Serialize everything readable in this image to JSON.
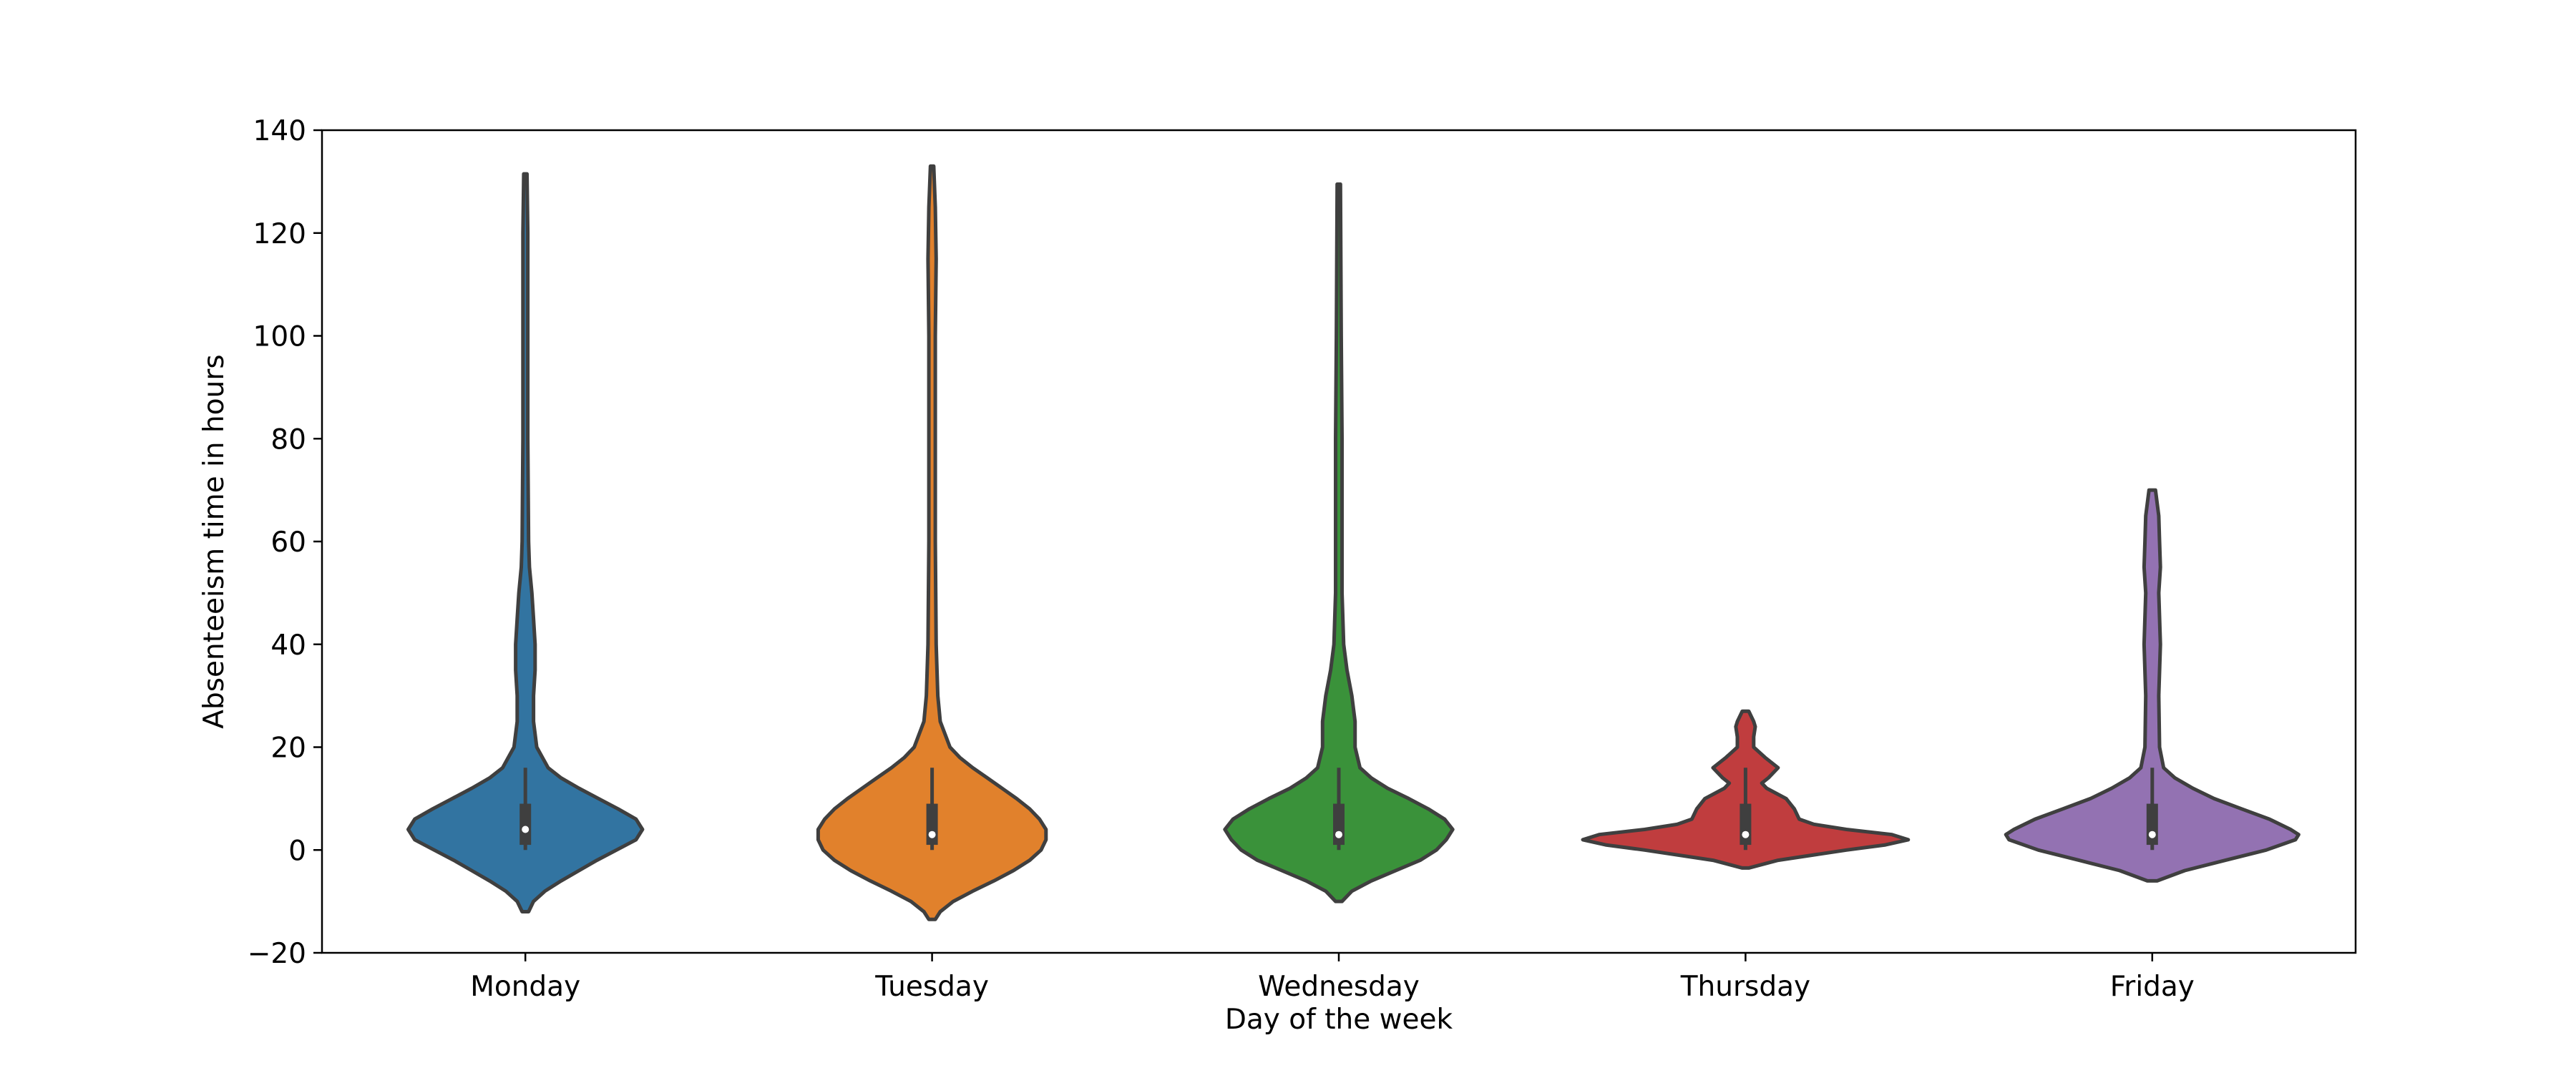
{
  "chart_data": {
    "type": "violin",
    "title": "",
    "xlabel": "Day of the week",
    "ylabel": "Absenteeism time in hours",
    "ylim": [
      -20,
      140
    ],
    "yticks": [
      -20,
      0,
      20,
      40,
      60,
      80,
      100,
      120,
      140
    ],
    "ytick_labels": [
      "−20",
      "0",
      "20",
      "40",
      "60",
      "80",
      "100",
      "120",
      "140"
    ],
    "grid": false,
    "legend": "none",
    "categories": [
      "Monday",
      "Tuesday",
      "Wednesday",
      "Thursday",
      "Friday"
    ],
    "colors": [
      "#3274a1",
      "#e1812c",
      "#3a923a",
      "#c03d3e",
      "#9372b2"
    ],
    "series": [
      {
        "min": -12,
        "max": 131.5,
        "q1": 1,
        "median": 4,
        "q3": 9,
        "whisker_low": 0,
        "whisker_high": 16,
        "density": [
          [
            -12,
            0.02
          ],
          [
            -10,
            0.05
          ],
          [
            -8,
            0.12
          ],
          [
            -6,
            0.22
          ],
          [
            -4,
            0.33
          ],
          [
            -2,
            0.44
          ],
          [
            0,
            0.56
          ],
          [
            2,
            0.68
          ],
          [
            4,
            0.72
          ],
          [
            6,
            0.68
          ],
          [
            8,
            0.57
          ],
          [
            10,
            0.45
          ],
          [
            12,
            0.33
          ],
          [
            14,
            0.22
          ],
          [
            16,
            0.14
          ],
          [
            20,
            0.07
          ],
          [
            25,
            0.05
          ],
          [
            30,
            0.05
          ],
          [
            35,
            0.06
          ],
          [
            40,
            0.06
          ],
          [
            45,
            0.05
          ],
          [
            50,
            0.04
          ],
          [
            55,
            0.025
          ],
          [
            60,
            0.02
          ],
          [
            80,
            0.015
          ],
          [
            100,
            0.015
          ],
          [
            120,
            0.015
          ],
          [
            131.5,
            0.01
          ]
        ]
      },
      {
        "min": -13.5,
        "max": 133,
        "q1": 1,
        "median": 3,
        "q3": 9,
        "whisker_low": 0,
        "whisker_high": 16,
        "density": [
          [
            -13.5,
            0.02
          ],
          [
            -12,
            0.05
          ],
          [
            -10,
            0.13
          ],
          [
            -8,
            0.25
          ],
          [
            -6,
            0.38
          ],
          [
            -4,
            0.5
          ],
          [
            -2,
            0.6
          ],
          [
            0,
            0.67
          ],
          [
            2,
            0.7
          ],
          [
            4,
            0.7
          ],
          [
            6,
            0.66
          ],
          [
            8,
            0.6
          ],
          [
            10,
            0.52
          ],
          [
            12,
            0.43
          ],
          [
            14,
            0.34
          ],
          [
            16,
            0.25
          ],
          [
            18,
            0.17
          ],
          [
            20,
            0.11
          ],
          [
            25,
            0.05
          ],
          [
            30,
            0.035
          ],
          [
            40,
            0.025
          ],
          [
            60,
            0.02
          ],
          [
            100,
            0.02
          ],
          [
            115,
            0.025
          ],
          [
            125,
            0.02
          ],
          [
            133,
            0.01
          ]
        ]
      },
      {
        "min": -10,
        "max": 129.5,
        "q1": 1,
        "median": 3,
        "q3": 9,
        "whisker_low": 0,
        "whisker_high": 16,
        "density": [
          [
            -10,
            0.02
          ],
          [
            -8,
            0.08
          ],
          [
            -6,
            0.2
          ],
          [
            -4,
            0.35
          ],
          [
            -2,
            0.5
          ],
          [
            0,
            0.6
          ],
          [
            2,
            0.66
          ],
          [
            4,
            0.7
          ],
          [
            6,
            0.65
          ],
          [
            8,
            0.55
          ],
          [
            10,
            0.43
          ],
          [
            12,
            0.3
          ],
          [
            14,
            0.2
          ],
          [
            16,
            0.13
          ],
          [
            20,
            0.1
          ],
          [
            25,
            0.1
          ],
          [
            30,
            0.08
          ],
          [
            35,
            0.05
          ],
          [
            40,
            0.03
          ],
          [
            50,
            0.02
          ],
          [
            80,
            0.02
          ],
          [
            100,
            0.015
          ],
          [
            129.5,
            0.01
          ]
        ]
      },
      {
        "min": -3.5,
        "max": 27,
        "q1": 1,
        "median": 3,
        "q3": 9,
        "whisker_low": 0,
        "whisker_high": 16,
        "density": [
          [
            -3.5,
            0.02
          ],
          [
            -2,
            0.2
          ],
          [
            0,
            0.62
          ],
          [
            1,
            0.86
          ],
          [
            2,
            1.0
          ],
          [
            3,
            0.9
          ],
          [
            4,
            0.62
          ],
          [
            5,
            0.42
          ],
          [
            6,
            0.33
          ],
          [
            8,
            0.3
          ],
          [
            10,
            0.25
          ],
          [
            12,
            0.13
          ],
          [
            13,
            0.1
          ],
          [
            14,
            0.14
          ],
          [
            16,
            0.2
          ],
          [
            18,
            0.12
          ],
          [
            20,
            0.05
          ],
          [
            22,
            0.05
          ],
          [
            24,
            0.06
          ],
          [
            25,
            0.05
          ],
          [
            27,
            0.02
          ]
        ]
      },
      {
        "min": -6,
        "max": 70,
        "q1": 1,
        "median": 3,
        "q3": 9,
        "whisker_low": 0,
        "whisker_high": 16,
        "density": [
          [
            -6,
            0.03
          ],
          [
            -4,
            0.2
          ],
          [
            -2,
            0.45
          ],
          [
            0,
            0.7
          ],
          [
            2,
            0.88
          ],
          [
            3,
            0.9
          ],
          [
            4,
            0.85
          ],
          [
            6,
            0.72
          ],
          [
            8,
            0.55
          ],
          [
            10,
            0.38
          ],
          [
            12,
            0.25
          ],
          [
            14,
            0.14
          ],
          [
            16,
            0.07
          ],
          [
            20,
            0.045
          ],
          [
            30,
            0.04
          ],
          [
            40,
            0.05
          ],
          [
            50,
            0.04
          ],
          [
            55,
            0.05
          ],
          [
            60,
            0.045
          ],
          [
            65,
            0.04
          ],
          [
            70,
            0.02
          ]
        ]
      }
    ]
  }
}
